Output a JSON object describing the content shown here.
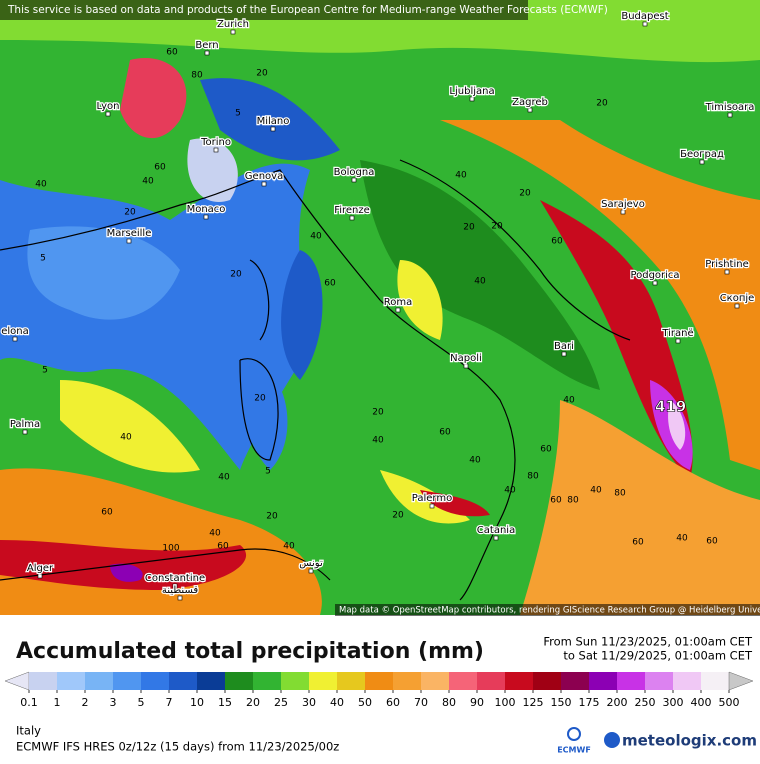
{
  "notice": "This service is based on data and products of the European Centre for Medium-range Weather Forecasts (ECMWF)",
  "attribution": "Map data © OpenStreetMap contributors, rendering GIScience Research Group @ Heidelberg University",
  "title": "Accumulated total precipitation (mm)",
  "period_from": "From Sun 11/23/2025, 01:00am CET",
  "period_to": "to Sat 11/29/2025, 01:00am CET",
  "region": "Italy",
  "model": "ECMWF IFS HRES 0z/12z (15 days) from  11/23/2025/00z",
  "logo_left": "ECMWF",
  "logo_right": "meteologix.com",
  "max_label": "419",
  "cities": [
    "Zurich",
    "Budapest",
    "Bern",
    "Ljubljana",
    "Zagreb",
    "Lyon",
    "Milano",
    "Timisoara",
    "Torino",
    "Београд",
    "Genova",
    "Bologna",
    "Sarajevo",
    "Monaco",
    "Firenze",
    "Marseille",
    "Podgorica",
    "Prishtine",
    "Roma",
    "Скопје",
    "elona",
    "Tiranë",
    "Bari",
    "Napoli",
    "Palma",
    "Palermo",
    "Catania",
    "Alger",
    "تونس",
    "Constantine",
    "قسنطينة"
  ],
  "map_labels": [
    60,
    80,
    20,
    5,
    60,
    40,
    40,
    20,
    5,
    20,
    40,
    60,
    20,
    20,
    60,
    20,
    40,
    20,
    40,
    5,
    20,
    5,
    20,
    40,
    40,
    60,
    40,
    40,
    60,
    40,
    20,
    40,
    80,
    60,
    40,
    40,
    60,
    80,
    100,
    60,
    40,
    20,
    60,
    40,
    60,
    80
  ],
  "legend": {
    "ticks": [
      0.1,
      1,
      2,
      3,
      5,
      7,
      10,
      15,
      20,
      25,
      30,
      40,
      50,
      60,
      70,
      80,
      90,
      100,
      125,
      150,
      175,
      200,
      250,
      300,
      400,
      500
    ],
    "colors": [
      "#e6e6f5",
      "#c8d2f0",
      "#a0c8fa",
      "#78b4f5",
      "#5096f0",
      "#3278e6",
      "#1e5ac8",
      "#0a3c96",
      "#1e8c1e",
      "#32b432",
      "#82dc32",
      "#f0f032",
      "#e6c81e",
      "#f08c14",
      "#f5a032",
      "#fab464",
      "#f56478",
      "#e63c5a",
      "#c80a1e",
      "#a00014",
      "#8c0050",
      "#8c00b4",
      "#c832e6",
      "#dc82f0",
      "#f0c8f5",
      "#f5f0f5",
      "#c8c8c8"
    ]
  }
}
